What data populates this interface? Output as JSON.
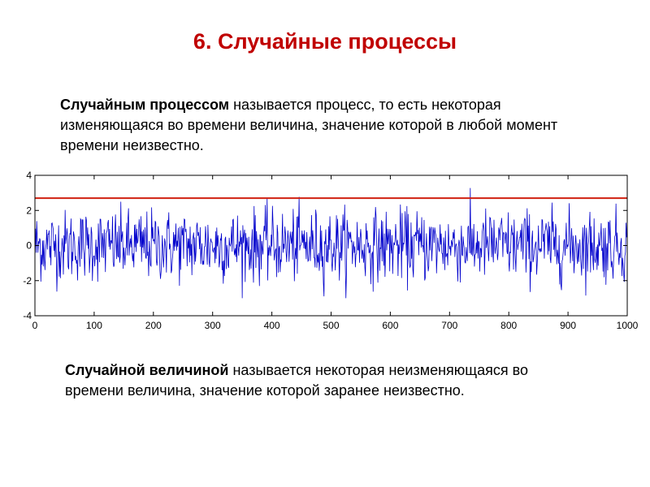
{
  "title": "6. Случайные процессы",
  "definition_process": {
    "term": "Случайным процессом",
    "text": " называется процесс, то есть некоторая изменяющаяся во времени величина, значение которой в любой момент времени неизвестно."
  },
  "definition_variable": {
    "term": "Случайной величиной",
    "text": " называется некоторая неизменяющаяся во времени величина, значение которой заранее неизвестно."
  },
  "chart_data": {
    "type": "line",
    "title": "",
    "xlabel": "",
    "ylabel": "",
    "xlim": [
      0,
      1000
    ],
    "ylim": [
      -4,
      4
    ],
    "xticks": [
      0,
      100,
      200,
      300,
      400,
      500,
      600,
      700,
      800,
      900,
      1000
    ],
    "yticks": [
      -4,
      -2,
      0,
      2,
      4
    ],
    "grid": false,
    "series": [
      {
        "kind": "random-noise",
        "n_points": 1000,
        "mean": 0,
        "std": 1,
        "min": -3.0,
        "max": 3.5,
        "color": "#0000cc"
      },
      {
        "kind": "threshold",
        "y": 2.7,
        "x": [
          0,
          1000
        ],
        "color": "#d02010"
      }
    ]
  }
}
